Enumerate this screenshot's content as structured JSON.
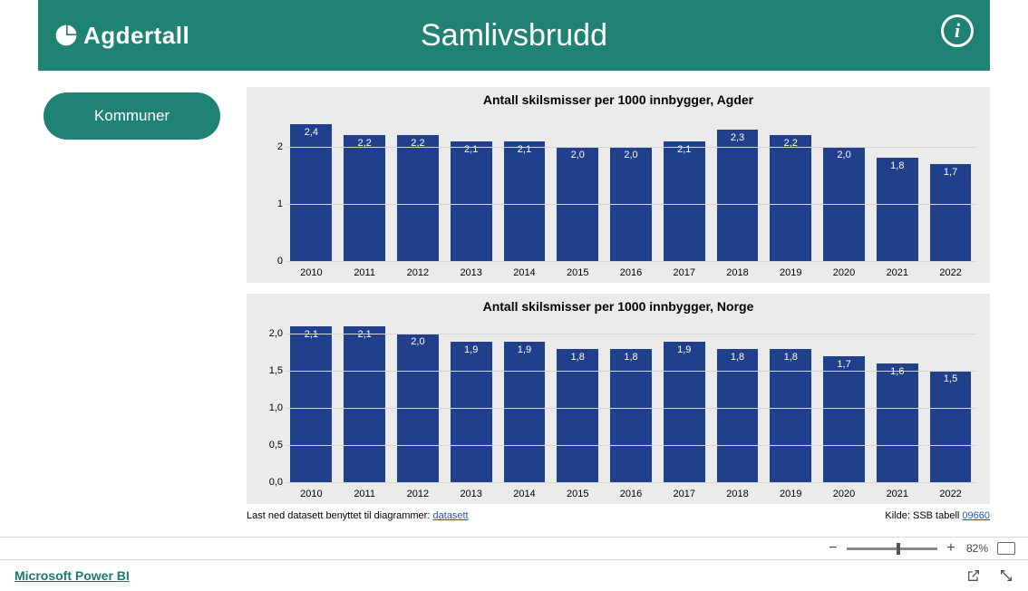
{
  "header": {
    "logo_text": "Agdertall",
    "title": "Samlivsbrudd",
    "info_glyph": "i",
    "background_color": "#208273",
    "text_color": "#ffffff"
  },
  "sidebar": {
    "kommuner_label": "Kommuner"
  },
  "chart1": {
    "title": "Antall skilsmisser per 1000 innbygger, Agder",
    "type": "bar",
    "categories": [
      "2010",
      "2011",
      "2012",
      "2013",
      "2014",
      "2015",
      "2016",
      "2017",
      "2018",
      "2019",
      "2020",
      "2021",
      "2022"
    ],
    "values": [
      2.4,
      2.2,
      2.2,
      2.1,
      2.1,
      2.0,
      2.0,
      2.1,
      2.3,
      2.2,
      2.0,
      1.8,
      1.7
    ],
    "value_labels": [
      "2,4",
      "2,2",
      "2,2",
      "2,1",
      "2,1",
      "2,0",
      "2,0",
      "2,1",
      "2,3",
      "2,2",
      "2,0",
      "1,8",
      "1,7"
    ],
    "bar_color": "#21408b",
    "background_color": "#ebebeb",
    "y_ticks": [
      0,
      1,
      2
    ],
    "y_tick_labels": [
      "0",
      "1",
      "2"
    ],
    "y_max": 2.6,
    "label_color": "#ffffff",
    "label_fontsize": 11,
    "title_fontsize": 14,
    "grid_color": "#d6d6d6"
  },
  "chart2": {
    "title": "Antall skilsmisser per 1000 innbygger, Norge",
    "type": "bar",
    "categories": [
      "2010",
      "2011",
      "2012",
      "2013",
      "2014",
      "2015",
      "2016",
      "2017",
      "2018",
      "2019",
      "2020",
      "2021",
      "2022"
    ],
    "values": [
      2.1,
      2.1,
      2.0,
      1.9,
      1.9,
      1.8,
      1.8,
      1.9,
      1.8,
      1.8,
      1.7,
      1.6,
      1.5
    ],
    "value_labels": [
      "2,1",
      "2,1",
      "2,0",
      "1,9",
      "1,9",
      "1,8",
      "1,8",
      "1,9",
      "1,8",
      "1,8",
      "1,7",
      "1,6",
      "1,5"
    ],
    "bar_color": "#21408b",
    "background_color": "#ebebeb",
    "y_ticks": [
      0.0,
      0.5,
      1.0,
      1.5,
      2.0
    ],
    "y_tick_labels": [
      "0,0",
      "0,5",
      "1,0",
      "1,5",
      "2,0"
    ],
    "y_max": 2.2,
    "label_color": "#ffffff",
    "label_fontsize": 11,
    "title_fontsize": 14,
    "grid_color": "#d6d6d6"
  },
  "footer": {
    "download_prefix": "Last ned datasett benyttet til diagrammer: ",
    "download_link_text": "datasett",
    "source_prefix": "Kilde: SSB tabell ",
    "source_link_text": "09660"
  },
  "zoom": {
    "minus": "−",
    "plus": "+",
    "percent_label": "82%",
    "thumb_position_pct": 55
  },
  "bottombar": {
    "powerbi_label": "Microsoft Power BI"
  }
}
